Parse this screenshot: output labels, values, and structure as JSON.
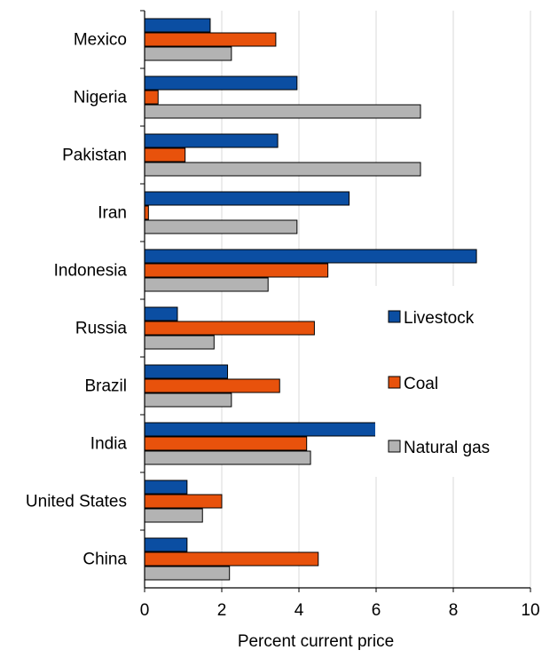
{
  "chart_data": {
    "type": "bar",
    "orientation": "horizontal",
    "categories": [
      "Mexico",
      "Nigeria",
      "Pakistan",
      "Iran",
      "Indonesia",
      "Russia",
      "Brazil",
      "India",
      "United States",
      "China"
    ],
    "series": [
      {
        "name": "Livestock",
        "color": "#0b4ea2",
        "values": [
          1.7,
          3.95,
          3.45,
          5.3,
          8.6,
          0.85,
          2.15,
          6.0,
          1.1,
          1.1
        ]
      },
      {
        "name": "Coal",
        "color": "#e8520c",
        "values": [
          3.4,
          0.35,
          1.05,
          0.1,
          4.75,
          4.4,
          3.5,
          4.2,
          2.0,
          4.5
        ]
      },
      {
        "name": "Natural gas",
        "color": "#b3b3b3",
        "values": [
          2.25,
          7.15,
          7.15,
          3.95,
          3.2,
          1.8,
          2.25,
          4.3,
          1.5,
          2.2
        ]
      }
    ],
    "xlabel": "Percent current price",
    "ylabel": "",
    "xlim": [
      0,
      10
    ],
    "xticks": [
      0,
      2,
      4,
      6,
      8,
      10
    ],
    "grid": "vertical",
    "legend_position": "right-middle"
  }
}
